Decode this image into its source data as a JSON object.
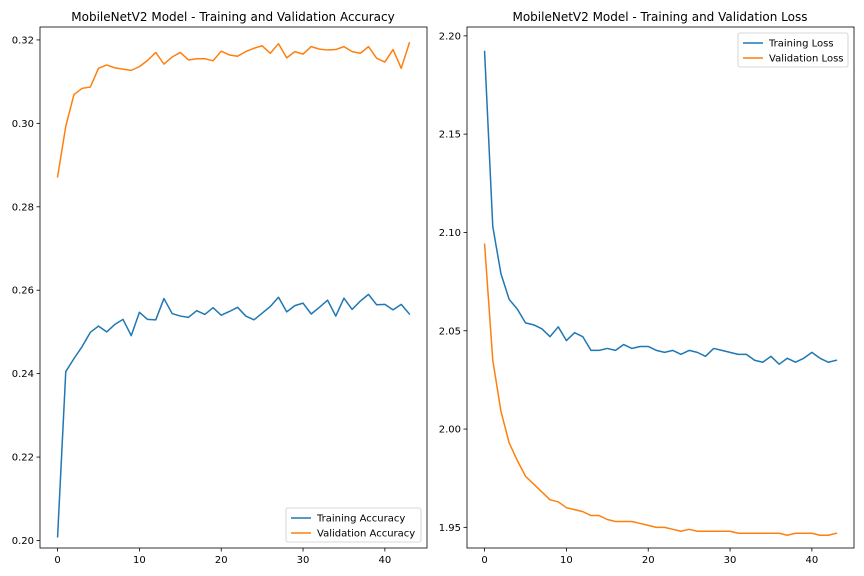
{
  "colors": {
    "training": "#1f77b4",
    "validation": "#ff7f0e"
  },
  "chart_data": [
    {
      "type": "line",
      "title": "MobileNetV2 Model - Training and Validation Accuracy",
      "xlim": [
        -2.15,
        45.15
      ],
      "ylim": [
        0.1982,
        0.3231
      ],
      "xticks": [
        0,
        10,
        20,
        30,
        40
      ],
      "yticks": [
        0.2,
        0.22,
        0.24,
        0.26,
        0.28,
        0.3,
        0.32
      ],
      "ytick_labels": [
        "0.20",
        "0.22",
        "0.24",
        "0.26",
        "0.28",
        "0.30",
        "0.32"
      ],
      "legend_position": "lower-right",
      "series": [
        {
          "name": "Training Accuracy",
          "color": "#1f77b4",
          "x": [
            0,
            1,
            2,
            3,
            4,
            5,
            6,
            7,
            8,
            9,
            10,
            11,
            12,
            13,
            14,
            15,
            16,
            17,
            18,
            19,
            20,
            21,
            22,
            23,
            24,
            25,
            26,
            27,
            28,
            29,
            30,
            31,
            32,
            33,
            34,
            35,
            36,
            37,
            38,
            39,
            40,
            41,
            42,
            43
          ],
          "values": [
            0.2009,
            0.2405,
            0.2436,
            0.2465,
            0.2499,
            0.2514,
            0.25,
            0.2518,
            0.253,
            0.2491,
            0.2547,
            0.253,
            0.2529,
            0.258,
            0.2544,
            0.2538,
            0.2535,
            0.2551,
            0.2542,
            0.2558,
            0.254,
            0.2549,
            0.2559,
            0.2538,
            0.2529,
            0.2545,
            0.2561,
            0.2583,
            0.2548,
            0.2563,
            0.2569,
            0.2543,
            0.2559,
            0.2576,
            0.2538,
            0.2581,
            0.2554,
            0.2574,
            0.259,
            0.2565,
            0.2566,
            0.2553,
            0.2566,
            0.2543
          ]
        },
        {
          "name": "Validation Accuracy",
          "color": "#ff7f0e",
          "x": [
            0,
            1,
            2,
            3,
            4,
            5,
            6,
            7,
            8,
            9,
            10,
            11,
            12,
            13,
            14,
            15,
            16,
            17,
            18,
            19,
            20,
            21,
            22,
            23,
            24,
            25,
            26,
            27,
            28,
            29,
            30,
            31,
            32,
            33,
            34,
            35,
            36,
            37,
            38,
            39,
            40,
            41,
            42,
            43
          ],
          "values": [
            0.2872,
            0.2993,
            0.3069,
            0.3084,
            0.3087,
            0.3132,
            0.314,
            0.3133,
            0.313,
            0.3127,
            0.3136,
            0.3151,
            0.317,
            0.3142,
            0.3159,
            0.317,
            0.3152,
            0.3155,
            0.3155,
            0.315,
            0.3173,
            0.3164,
            0.3161,
            0.3172,
            0.318,
            0.3186,
            0.3168,
            0.3191,
            0.3157,
            0.3172,
            0.3166,
            0.3184,
            0.3178,
            0.3176,
            0.3177,
            0.3184,
            0.3172,
            0.3168,
            0.3184,
            0.3156,
            0.3147,
            0.3177,
            0.3132,
            0.3193
          ]
        }
      ]
    },
    {
      "type": "line",
      "title": "MobileNetV2 Model - Training and Validation Loss",
      "xlim": [
        -2.15,
        45.15
      ],
      "ylim": [
        1.9395,
        2.2045
      ],
      "xticks": [
        0,
        10,
        20,
        30,
        40
      ],
      "yticks": [
        1.95,
        2.0,
        2.05,
        2.1,
        2.15,
        2.2
      ],
      "ytick_labels": [
        "1.95",
        "2.00",
        "2.05",
        "2.10",
        "2.15",
        "2.20"
      ],
      "legend_position": "upper-right",
      "series": [
        {
          "name": "Training Loss",
          "color": "#1f77b4",
          "x": [
            0,
            1,
            2,
            3,
            4,
            5,
            6,
            7,
            8,
            9,
            10,
            11,
            12,
            13,
            14,
            15,
            16,
            17,
            18,
            19,
            20,
            21,
            22,
            23,
            24,
            25,
            26,
            27,
            28,
            29,
            30,
            31,
            32,
            33,
            34,
            35,
            36,
            37,
            38,
            39,
            40,
            41,
            42,
            43
          ],
          "values": [
            2.192,
            2.103,
            2.079,
            2.066,
            2.061,
            2.054,
            2.053,
            2.051,
            2.047,
            2.052,
            2.045,
            2.049,
            2.047,
            2.04,
            2.04,
            2.041,
            2.04,
            2.043,
            2.041,
            2.042,
            2.042,
            2.04,
            2.039,
            2.04,
            2.038,
            2.04,
            2.039,
            2.037,
            2.041,
            2.04,
            2.039,
            2.038,
            2.038,
            2.035,
            2.034,
            2.037,
            2.033,
            2.036,
            2.034,
            2.036,
            2.039,
            2.036,
            2.034,
            2.035
          ]
        },
        {
          "name": "Validation Loss",
          "color": "#ff7f0e",
          "x": [
            0,
            1,
            2,
            3,
            4,
            5,
            6,
            7,
            8,
            9,
            10,
            11,
            12,
            13,
            14,
            15,
            16,
            17,
            18,
            19,
            20,
            21,
            22,
            23,
            24,
            25,
            26,
            27,
            28,
            29,
            30,
            31,
            32,
            33,
            34,
            35,
            36,
            37,
            38,
            39,
            40,
            41,
            42,
            43
          ],
          "values": [
            2.094,
            2.035,
            2.009,
            1.993,
            1.984,
            1.976,
            1.972,
            1.968,
            1.964,
            1.963,
            1.96,
            1.959,
            1.958,
            1.956,
            1.956,
            1.954,
            1.953,
            1.953,
            1.953,
            1.952,
            1.951,
            1.95,
            1.95,
            1.949,
            1.948,
            1.949,
            1.948,
            1.948,
            1.948,
            1.948,
            1.948,
            1.947,
            1.947,
            1.947,
            1.947,
            1.947,
            1.947,
            1.946,
            1.947,
            1.947,
            1.947,
            1.946,
            1.946,
            1.947
          ]
        }
      ]
    }
  ]
}
